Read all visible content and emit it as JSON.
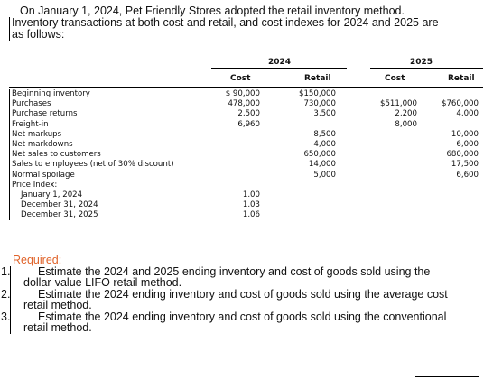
{
  "intro": {
    "line1": "On January 1, 2024, Pet Friendly Stores adopted the retail inventory method.",
    "line2": "Inventory transactions at both cost and retail, and cost indexes for 2024 and 2025 are",
    "line3": "as follows:"
  },
  "table": {
    "year1": "2024",
    "year2": "2025",
    "headers": {
      "c24": "Cost",
      "r24": "Retail",
      "c25": "Cost",
      "r25": "Retail"
    },
    "rows": [
      {
        "label": "Beginning inventory",
        "c24": "$ 90,000",
        "r24": "$150,000",
        "c25": "",
        "r25": ""
      },
      {
        "label": "Purchases",
        "c24": "478,000",
        "r24": "730,000",
        "c25": "$511,000",
        "r25": "$760,000"
      },
      {
        "label": "Purchase returns",
        "c24": "2,500",
        "r24": "3,500",
        "c25": "2,200",
        "r25": "4,000"
      },
      {
        "label": "Freight-in",
        "c24": "6,960",
        "r24": "",
        "c25": "8,000",
        "r25": ""
      },
      {
        "label": "Net markups",
        "c24": "",
        "r24": "8,500",
        "c25": "",
        "r25": "10,000"
      },
      {
        "label": "Net markdowns",
        "c24": "",
        "r24": "4,000",
        "c25": "",
        "r25": "6,000"
      },
      {
        "label": "Net sales to customers",
        "c24": "",
        "r24": "650,000",
        "c25": "",
        "r25": "680,000"
      },
      {
        "label": "Sales to employees (net of 30% discount)",
        "c24": "",
        "r24": "14,000",
        "c25": "",
        "r25": "17,500"
      },
      {
        "label": "Normal spoilage",
        "c24": "",
        "r24": "5,000",
        "c25": "",
        "r25": "6,600"
      },
      {
        "label": "Price Index:",
        "c24": "",
        "r24": "",
        "c25": "",
        "r25": ""
      },
      {
        "label": "January 1, 2024",
        "c24": "1.00",
        "r24": "",
        "c25": "",
        "r25": ""
      },
      {
        "label": "December 31, 2024",
        "c24": "1.03",
        "r24": "",
        "c25": "",
        "r25": ""
      },
      {
        "label": "December 31, 2025",
        "c24": "1.06",
        "r24": "",
        "c25": "",
        "r25": ""
      }
    ]
  },
  "required": {
    "title": "Required:",
    "items": [
      {
        "num": "1.",
        "line1": "Estimate the 2024 and 2025 ending inventory and cost of goods sold using the",
        "line2": "dollar-value LIFO retail method."
      },
      {
        "num": "2.",
        "line1": "Estimate the 2024 ending inventory and cost of goods sold using the average cost",
        "line2": "retail method."
      },
      {
        "num": "3.",
        "line1": "Estimate the 2024 ending inventory and cost of goods sold using the conventional",
        "line2": "retail method."
      }
    ]
  }
}
